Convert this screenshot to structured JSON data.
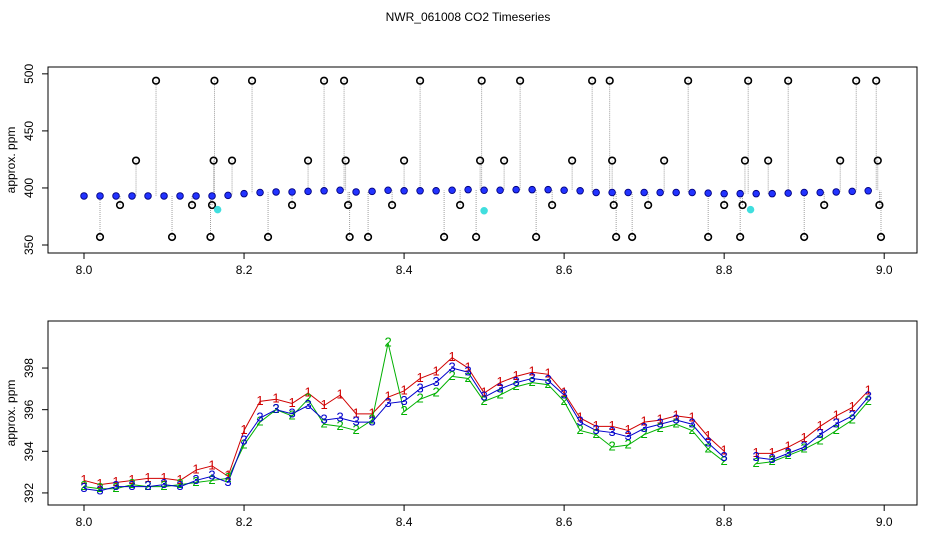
{
  "chart_data": [
    {
      "type": "scatter",
      "title": "NWR_061008  CO2 Timeseries",
      "ylabel": "approx. ppm",
      "xlim": [
        7.955,
        9.041
      ],
      "ylim": [
        343,
        506
      ],
      "xticks": [
        {
          "value": 8.0,
          "label": "8.0"
        },
        {
          "value": 8.2,
          "label": "8.2"
        },
        {
          "value": 8.4,
          "label": "8.4"
        },
        {
          "value": 8.6,
          "label": "8.6"
        },
        {
          "value": 8.8,
          "label": "8.8"
        },
        {
          "value": 9.0,
          "label": "9.0"
        }
      ],
      "yticks": [
        350,
        400,
        450,
        500
      ],
      "series": [
        {
          "color": "#000080",
          "fill": "#2233ff",
          "x": [
            8.0,
            8.02,
            8.04,
            8.06,
            8.08,
            8.1,
            8.12,
            8.14,
            8.16,
            8.18,
            8.2,
            8.22,
            8.24,
            8.26,
            8.28,
            8.3,
            8.32,
            8.34,
            8.36,
            8.38,
            8.4,
            8.42,
            8.44,
            8.46,
            8.48,
            8.5,
            8.52,
            8.54,
            8.56,
            8.58,
            8.6,
            8.62,
            8.64,
            8.66,
            8.68,
            8.7,
            8.72,
            8.74,
            8.76,
            8.78,
            8.8,
            8.82,
            8.84,
            8.86,
            8.88,
            8.9,
            8.92,
            8.94,
            8.96,
            8.98
          ],
          "values": [
            393,
            393,
            393,
            393,
            393,
            393,
            393,
            393,
            393,
            393.5,
            395,
            396,
            396.5,
            396.5,
            397,
            397.5,
            398,
            396.5,
            397,
            398,
            397.5,
            397.5,
            397.5,
            398,
            398.5,
            398,
            398,
            398.5,
            398.5,
            398.5,
            398,
            397.5,
            396,
            396,
            396,
            396,
            396,
            396,
            396,
            395.5,
            395,
            395,
            395,
            395,
            395.5,
            396,
            396,
            396.5,
            397,
            397.5
          ]
        },
        {
          "color": "#000000",
          "fill": "none",
          "drop_lines": true,
          "x": [
            8.02,
            8.045,
            8.065,
            8.09,
            8.11,
            8.135,
            8.158,
            8.16,
            8.162,
            8.163,
            8.185,
            8.21,
            8.23,
            8.26,
            8.28,
            8.3,
            8.325,
            8.327,
            8.33,
            8.332,
            8.355,
            8.385,
            8.4,
            8.42,
            8.45,
            8.47,
            8.49,
            8.495,
            8.497,
            8.525,
            8.545,
            8.565,
            8.585,
            8.61,
            8.635,
            8.657,
            8.66,
            8.662,
            8.665,
            8.685,
            8.705,
            8.725,
            8.755,
            8.78,
            8.8,
            8.82,
            8.823,
            8.826,
            8.83,
            8.855,
            8.88,
            8.9,
            8.925,
            8.945,
            8.965,
            8.99,
            8.992,
            8.994,
            8.996
          ],
          "values": [
            357,
            385,
            424,
            494,
            357,
            385,
            357,
            385,
            424,
            494,
            424,
            494,
            357,
            385,
            424,
            494,
            494,
            424,
            385,
            357,
            357,
            385,
            424,
            494,
            357,
            385,
            357,
            424,
            494,
            424,
            494,
            357,
            385,
            424,
            494,
            494,
            424,
            385,
            357,
            357,
            385,
            424,
            494,
            357,
            385,
            357,
            385,
            424,
            494,
            424,
            494,
            357,
            385,
            424,
            494,
            494,
            424,
            385,
            357
          ]
        },
        {
          "color": "#40dede",
          "fill": "#40dede",
          "x": [
            8.167,
            8.5,
            8.833
          ],
          "values": [
            381,
            380,
            381
          ]
        }
      ]
    },
    {
      "type": "line",
      "ylabel": "approx. ppm",
      "xlim": [
        7.955,
        9.041
      ],
      "ylim": [
        391.42,
        400.26
      ],
      "xticks": [
        {
          "value": 8.0,
          "label": "8.0"
        },
        {
          "value": 8.2,
          "label": "8.2"
        },
        {
          "value": 8.4,
          "label": "8.4"
        },
        {
          "value": 8.6,
          "label": "8.6"
        },
        {
          "value": 8.8,
          "label": "8.8"
        },
        {
          "value": 9.0,
          "label": "9.0"
        }
      ],
      "yticks": [
        392,
        394,
        396,
        398
      ],
      "x": [
        8.0,
        8.02,
        8.04,
        8.06,
        8.08,
        8.1,
        8.12,
        8.14,
        8.16,
        8.18,
        8.2,
        8.22,
        8.24,
        8.26,
        8.28,
        8.3,
        8.32,
        8.34,
        8.36,
        8.38,
        8.4,
        8.42,
        8.44,
        8.46,
        8.48,
        8.5,
        8.52,
        8.54,
        8.56,
        8.58,
        8.6,
        8.62,
        8.64,
        8.66,
        8.68,
        8.7,
        8.72,
        8.74,
        8.76,
        8.78,
        8.8,
        8.82,
        8.84,
        8.86,
        8.88,
        8.9,
        8.92,
        8.94,
        8.96,
        8.98
      ],
      "series": [
        {
          "marker": "1",
          "color": "#d00000",
          "values": [
            392.6,
            392.4,
            392.5,
            392.6,
            392.7,
            392.7,
            392.6,
            393.1,
            393.3,
            392.8,
            395.0,
            396.4,
            396.5,
            396.3,
            396.8,
            396.2,
            396.7,
            395.8,
            395.8,
            396.6,
            396.9,
            397.5,
            397.8,
            398.5,
            398.0,
            396.8,
            397.3,
            397.6,
            397.8,
            397.7,
            396.8,
            395.6,
            395.2,
            395.2,
            395.0,
            395.4,
            395.5,
            395.7,
            395.6,
            394.7,
            394.0,
            null,
            393.9,
            393.9,
            394.2,
            394.6,
            395.2,
            395.7,
            396.1,
            396.9
          ]
        },
        {
          "marker": "2",
          "color": "#00b000",
          "values": [
            392.3,
            392.2,
            392.2,
            392.4,
            392.3,
            392.3,
            392.4,
            392.5,
            392.6,
            392.7,
            394.3,
            395.4,
            396.0,
            395.7,
            396.5,
            395.3,
            395.2,
            395.0,
            395.5,
            399.2,
            395.9,
            396.5,
            396.8,
            397.6,
            397.5,
            396.4,
            396.7,
            397.1,
            397.3,
            397.2,
            396.4,
            395.0,
            394.8,
            394.2,
            394.3,
            394.8,
            395.1,
            395.3,
            395.0,
            394.1,
            393.5,
            null,
            393.4,
            393.5,
            393.8,
            394.1,
            394.5,
            395.0,
            395.5,
            396.4
          ]
        },
        {
          "marker": "3",
          "color": "#0000cc",
          "values": [
            392.2,
            392.1,
            392.3,
            392.3,
            392.3,
            392.4,
            392.3,
            392.6,
            392.8,
            392.5,
            394.5,
            395.6,
            396.0,
            395.8,
            396.2,
            395.5,
            395.6,
            395.4,
            395.4,
            396.3,
            396.4,
            397.0,
            397.3,
            398.0,
            397.8,
            396.6,
            397.0,
            397.3,
            397.5,
            397.4,
            396.7,
            395.4,
            395.0,
            394.9,
            394.7,
            395.1,
            395.3,
            395.5,
            395.3,
            394.4,
            393.7,
            null,
            393.7,
            393.6,
            393.9,
            394.2,
            394.8,
            395.3,
            395.7,
            396.6
          ]
        }
      ]
    }
  ]
}
